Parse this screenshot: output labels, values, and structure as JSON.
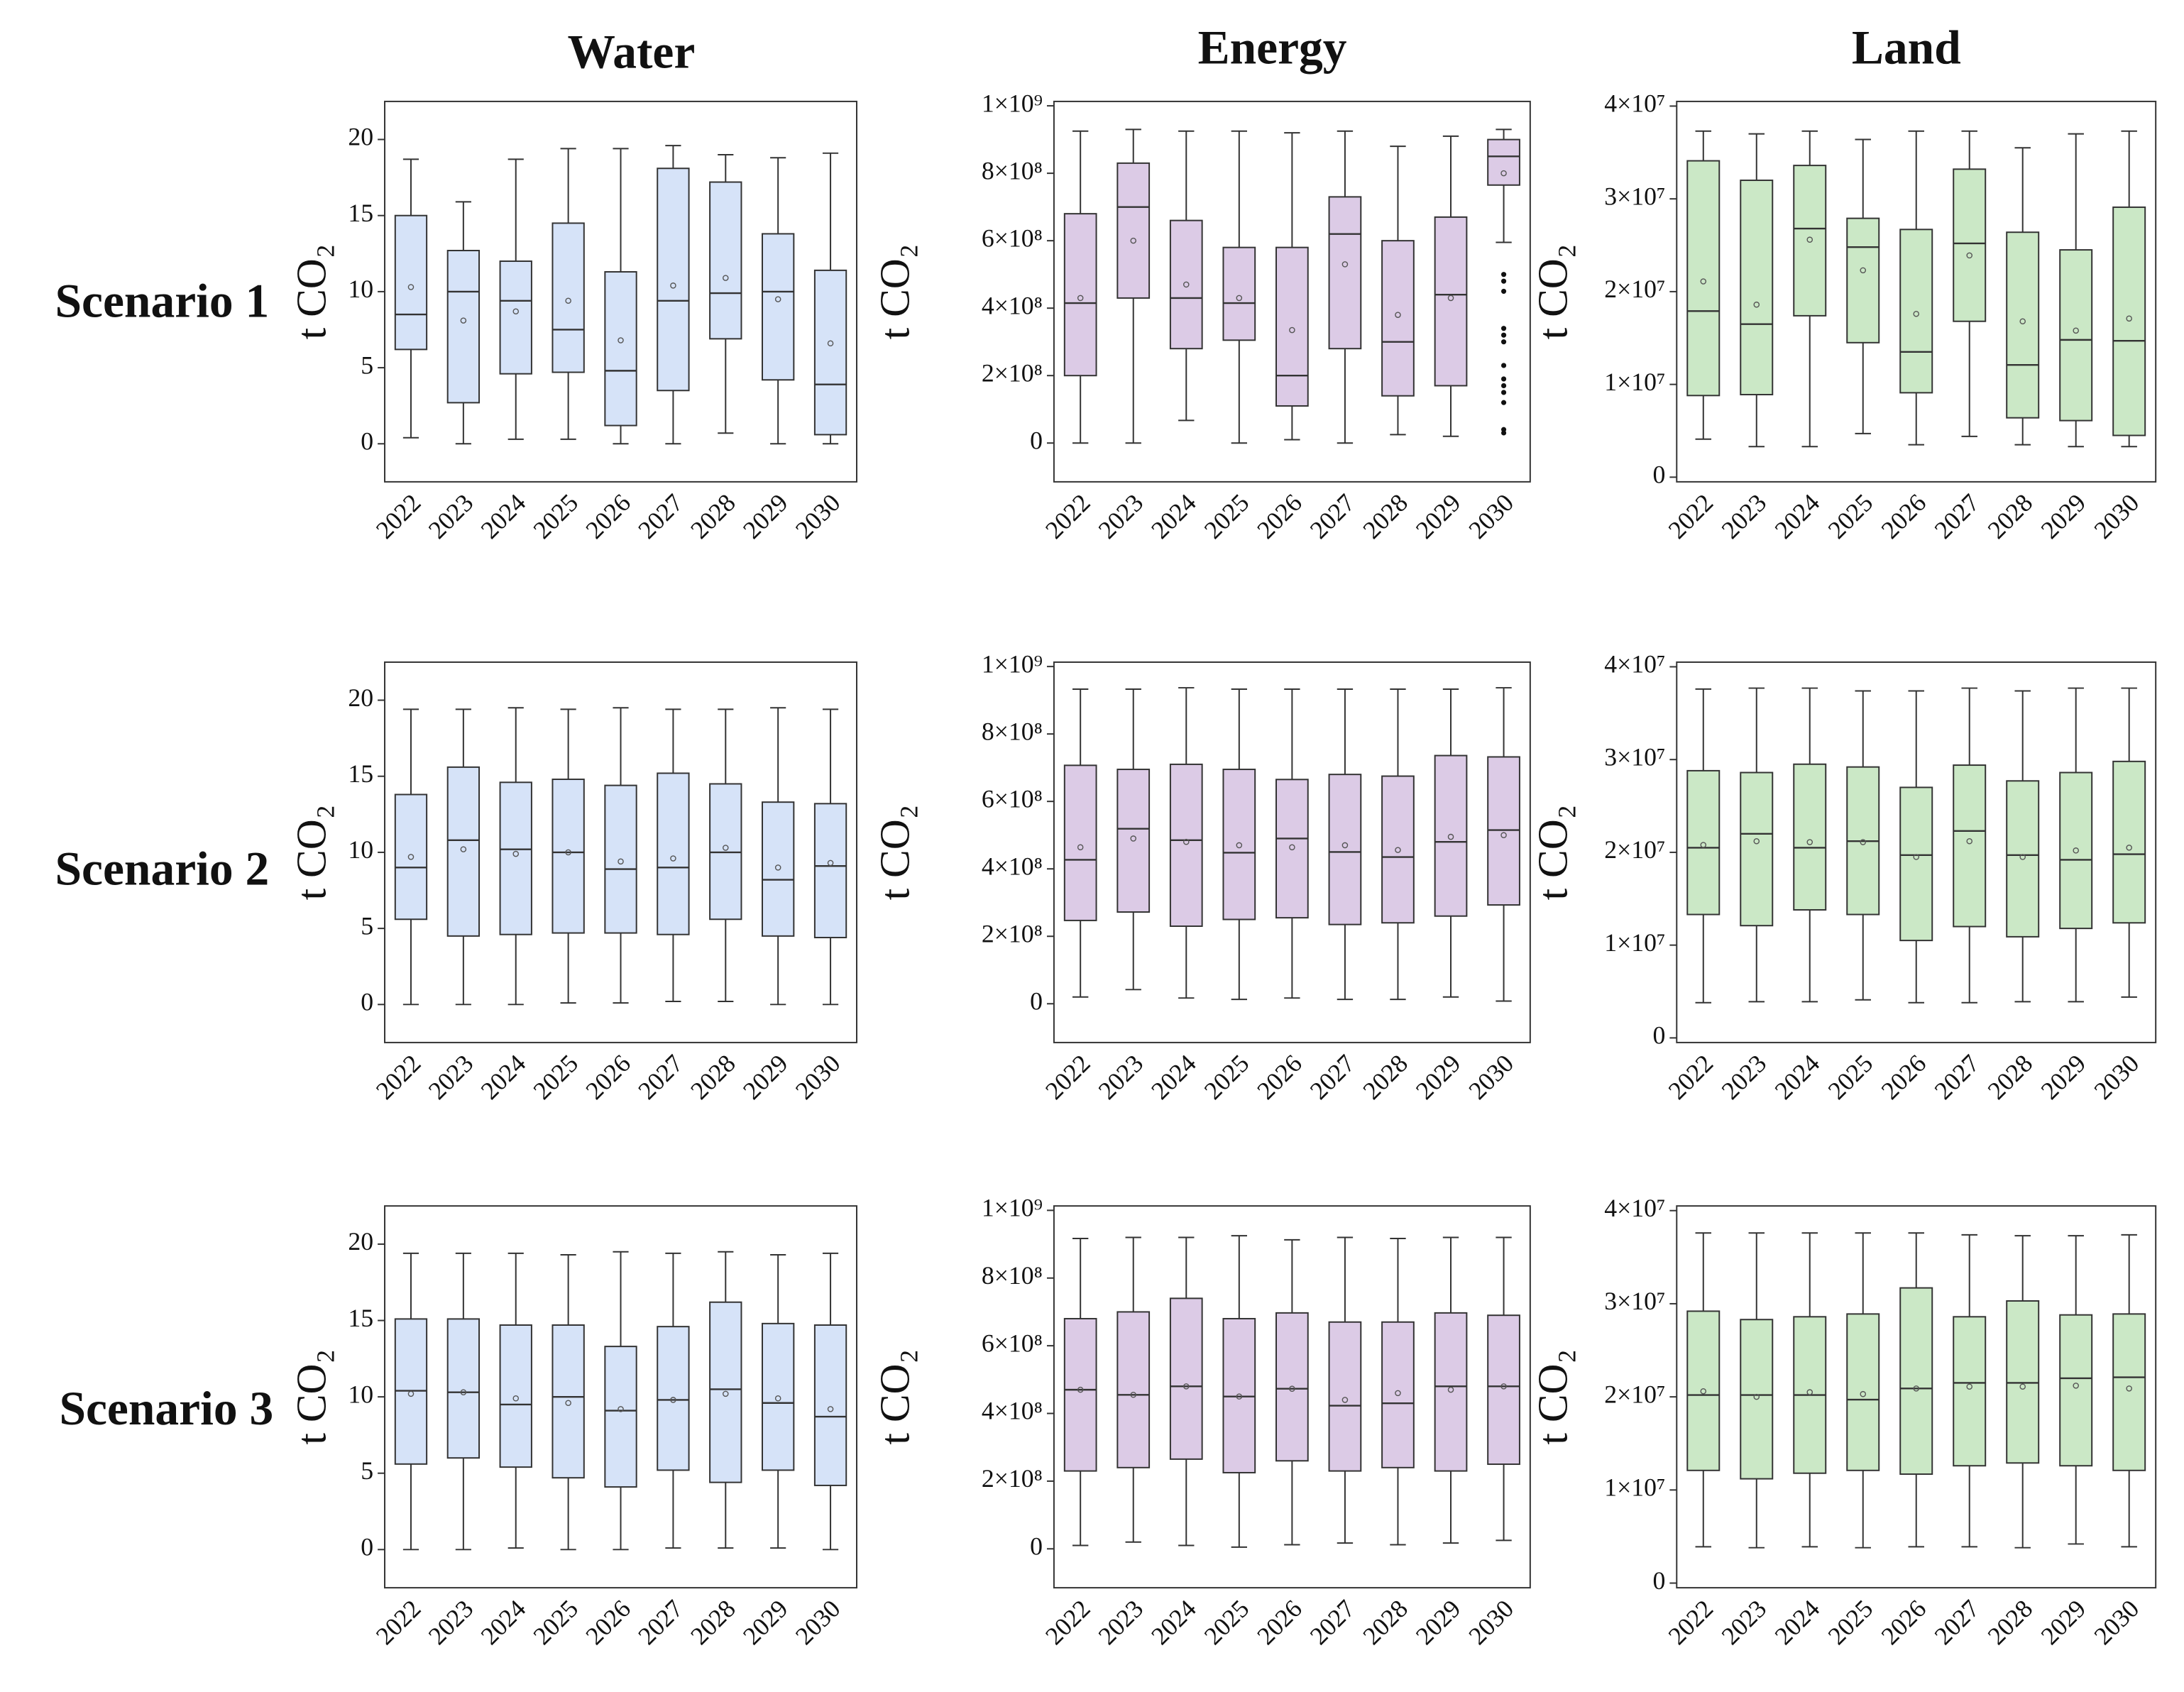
{
  "column_titles": [
    "Water",
    "Energy",
    "Land"
  ],
  "row_labels": [
    "Scenario 1",
    "Scenario 2",
    "Scenario 3"
  ],
  "chart_data": [
    {
      "type": "box",
      "ylabel": "t CO₂",
      "color": "#d6e3f8",
      "categories": [
        "2022",
        "2023",
        "2024",
        "2025",
        "2026",
        "2027",
        "2028",
        "2029",
        "2030"
      ],
      "min": [
        0.4,
        0,
        0.3,
        0.3,
        0,
        0,
        0.7,
        0,
        0
      ],
      "q1": [
        6.2,
        2.7,
        4.6,
        4.7,
        1.2,
        3.5,
        6.9,
        4.2,
        0.6
      ],
      "median": [
        8.5,
        10.0,
        9.4,
        7.5,
        4.8,
        9.4,
        9.9,
        10.0,
        3.9
      ],
      "q3": [
        15.0,
        12.7,
        12.0,
        14.5,
        11.3,
        18.1,
        17.2,
        13.8,
        11.4
      ],
      "max": [
        18.7,
        15.9,
        18.7,
        19.4,
        19.4,
        19.6,
        19.0,
        18.8,
        19.1
      ],
      "mean": [
        10.3,
        8.1,
        8.7,
        9.4,
        6.8,
        10.4,
        10.9,
        9.5,
        6.6
      ],
      "ylim": [
        -2.5,
        22.5
      ],
      "yticks": [
        0,
        5,
        10,
        15,
        20
      ]
    },
    {
      "type": "box",
      "ylabel": "t CO₂",
      "color": "#dccbe6",
      "categories": [
        "2022",
        "2023",
        "2024",
        "2025",
        "2026",
        "2027",
        "2028",
        "2029",
        "2030"
      ],
      "min": [
        0,
        0,
        67000000.0,
        0,
        10000000.0,
        0,
        25000000.0,
        20000000.0,
        595000000.0
      ],
      "q1": [
        200000000.0,
        430000000.0,
        280000000.0,
        305000000.0,
        110000000.0,
        280000000.0,
        140000000.0,
        170000000.0,
        765000000.0
      ],
      "median": [
        415000000.0,
        700000000.0,
        430000000.0,
        415000000.0,
        200000000.0,
        620000000.0,
        300000000.0,
        440000000.0,
        850000000.0
      ],
      "q3": [
        680000000.0,
        830000000.0,
        660000000.0,
        580000000.0,
        580000000.0,
        730000000.0,
        600000000.0,
        670000000.0,
        900000000.0
      ],
      "max": [
        925000000.0,
        930000000.0,
        925000000.0,
        925000000.0,
        920000000.0,
        925000000.0,
        880000000.0,
        910000000.0,
        930000000.0
      ],
      "mean": [
        430000000.0,
        600000000.0,
        470000000.0,
        430000000.0,
        335000000.0,
        530000000.0,
        380000000.0,
        430000000.0,
        800000000.0
      ],
      "outliers": [
        [],
        [],
        [],
        [],
        [],
        [],
        [],
        [],
        [
          500000000.0,
          480000000.0,
          450000000.0,
          340000000.0,
          320000000.0,
          300000000.0,
          230000000.0,
          190000000.0,
          170000000.0,
          150000000.0,
          120000000.0,
          40000000.0,
          30000000.0
        ]
      ],
      "ylim": [
        -115000000.0,
        1013000000.0
      ],
      "yticks": [
        0,
        {
          "value": 200000000.0,
          "label": "2×10⁸"
        },
        {
          "value": 400000000.0,
          "label": "4×10⁸"
        },
        {
          "value": 600000000.0,
          "label": "6×10⁸"
        },
        {
          "value": 800000000.0,
          "label": "8×10⁸"
        },
        {
          "value": 1000000000.0,
          "label": "1×10⁹"
        }
      ]
    },
    {
      "type": "box",
      "ylabel": "t CO₂",
      "color": "#cbe8c6",
      "categories": [
        "2022",
        "2023",
        "2024",
        "2025",
        "2026",
        "2027",
        "2028",
        "2029",
        "2030"
      ],
      "min": [
        4100000.0,
        3300000.0,
        3300000.0,
        4700000.0,
        3500000.0,
        4400000.0,
        3500000.0,
        3300000.0,
        3300000.0
      ],
      "q1": [
        8800000.0,
        8900000.0,
        17400000.0,
        14500000.0,
        9100000.0,
        16800000.0,
        6400000.0,
        6100000.0,
        4500000.0
      ],
      "median": [
        17900000.0,
        16500000.0,
        26800000.0,
        24800000.0,
        13500000.0,
        25200000.0,
        12100000.0,
        14800000.0,
        14700000.0
      ],
      "q3": [
        34100000.0,
        32000000.0,
        33600000.0,
        27900000.0,
        26700000.0,
        33200000.0,
        26400000.0,
        24500000.0,
        29100000.0
      ],
      "max": [
        37300000.0,
        37000000.0,
        37300000.0,
        36400000.0,
        37300000.0,
        37300000.0,
        35500000.0,
        37000000.0,
        37300000.0
      ],
      "mean": [
        21100000.0,
        18600000.0,
        25600000.0,
        22300000.0,
        17600000.0,
        23900000.0,
        16800000.0,
        15800000.0,
        17100000.0
      ],
      "ylim": [
        -500000.0,
        40500000.0
      ],
      "yticks": [
        0,
        {
          "value": 10000000.0,
          "label": "1×10⁷"
        },
        {
          "value": 20000000.0,
          "label": "2×10⁷"
        },
        {
          "value": 30000000.0,
          "label": "3×10⁷"
        },
        {
          "value": 40000000.0,
          "label": "4×10⁷"
        }
      ]
    },
    {
      "type": "box",
      "ylabel": "t CO₂",
      "color": "#d6e3f8",
      "categories": [
        "2022",
        "2023",
        "2024",
        "2025",
        "2026",
        "2027",
        "2028",
        "2029",
        "2030"
      ],
      "min": [
        0,
        0,
        0,
        0.1,
        0.1,
        0.2,
        0.2,
        0,
        0
      ],
      "q1": [
        5.6,
        4.5,
        4.6,
        4.7,
        4.7,
        4.6,
        5.6,
        4.5,
        4.4
      ],
      "median": [
        9.0,
        10.8,
        10.2,
        10.0,
        8.9,
        9.0,
        10.0,
        8.2,
        9.1
      ],
      "q3": [
        13.8,
        15.6,
        14.6,
        14.8,
        14.4,
        15.2,
        14.5,
        13.3,
        13.2
      ],
      "max": [
        19.4,
        19.4,
        19.5,
        19.4,
        19.5,
        19.4,
        19.4,
        19.5,
        19.4
      ],
      "mean": [
        9.7,
        10.2,
        9.9,
        10.0,
        9.4,
        9.6,
        10.3,
        9.0,
        9.3
      ],
      "ylim": [
        -2.5,
        22.5
      ],
      "yticks": [
        0,
        5,
        10,
        15,
        20
      ]
    },
    {
      "type": "box",
      "ylabel": "t CO₂",
      "color": "#dccbe6",
      "categories": [
        "2022",
        "2023",
        "2024",
        "2025",
        "2026",
        "2027",
        "2028",
        "2029",
        "2030"
      ],
      "min": [
        20000000.0,
        42000000.0,
        17000000.0,
        13000000.0,
        17000000.0,
        13000000.0,
        13000000.0,
        20000000.0,
        8000000.0
      ],
      "q1": [
        247000000.0,
        272000000.0,
        230000000.0,
        250000000.0,
        255000000.0,
        235000000.0,
        240000000.0,
        260000000.0,
        293000000.0
      ],
      "median": [
        427000000.0,
        519000000.0,
        485000000.0,
        448000000.0,
        490000000.0,
        450000000.0,
        435000000.0,
        480000000.0,
        515000000.0
      ],
      "q3": [
        707000000.0,
        695000000.0,
        710000000.0,
        695000000.0,
        665000000.0,
        680000000.0,
        675000000.0,
        736000000.0,
        732000000.0
      ],
      "max": [
        933000000.0,
        933000000.0,
        937000000.0,
        933000000.0,
        933000000.0,
        933000000.0,
        933000000.0,
        933000000.0,
        937000000.0
      ],
      "mean": [
        464000000.0,
        490000000.0,
        480000000.0,
        470000000.0,
        464000000.0,
        470000000.0,
        456000000.0,
        495000000.0,
        500000000.0
      ],
      "ylim": [
        -115000000.0,
        1013000000.0
      ],
      "yticks": [
        0,
        {
          "value": 200000000.0,
          "label": "2×10⁸"
        },
        {
          "value": 400000000.0,
          "label": "4×10⁸"
        },
        {
          "value": 600000000.0,
          "label": "6×10⁸"
        },
        {
          "value": 800000000.0,
          "label": "8×10⁸"
        },
        {
          "value": 1000000000.0,
          "label": "1×10⁹"
        }
      ]
    },
    {
      "type": "box",
      "ylabel": "t CO₂",
      "color": "#cbe8c6",
      "categories": [
        "2022",
        "2023",
        "2024",
        "2025",
        "2026",
        "2027",
        "2028",
        "2029",
        "2030"
      ],
      "min": [
        3800000.0,
        3900000.0,
        3900000.0,
        4100000.0,
        3800000.0,
        3800000.0,
        3900000.0,
        3900000.0,
        4400000.0
      ],
      "q1": [
        13300000.0,
        12100000.0,
        13800000.0,
        13300000.0,
        10500000.0,
        12000000.0,
        10900000.0,
        11800000.0,
        12400000.0
      ],
      "median": [
        20500000.0,
        22000000.0,
        20500000.0,
        21200000.0,
        19700000.0,
        22300000.0,
        19700000.0,
        19200000.0,
        19800000.0
      ],
      "q3": [
        28800000.0,
        28600000.0,
        29500000.0,
        29200000.0,
        27000000.0,
        29400000.0,
        27700000.0,
        28600000.0,
        29800000.0
      ],
      "max": [
        37600000.0,
        37700000.0,
        37700000.0,
        37400000.0,
        37400000.0,
        37700000.0,
        37400000.0,
        37700000.0,
        37700000.0
      ],
      "mean": [
        20800000.0,
        21200000.0,
        21100000.0,
        21100000.0,
        19500000.0,
        21200000.0,
        19500000.0,
        20200000.0,
        20500000.0
      ],
      "ylim": [
        -500000.0,
        40500000.0
      ],
      "yticks": [
        0,
        {
          "value": 10000000.0,
          "label": "1×10⁷"
        },
        {
          "value": 20000000.0,
          "label": "2×10⁷"
        },
        {
          "value": 30000000.0,
          "label": "3×10⁷"
        },
        {
          "value": 40000000.0,
          "label": "4×10⁷"
        }
      ]
    },
    {
      "type": "box",
      "ylabel": "t CO₂",
      "color": "#d6e3f8",
      "categories": [
        "2022",
        "2023",
        "2024",
        "2025",
        "2026",
        "2027",
        "2028",
        "2029",
        "2030"
      ],
      "min": [
        0,
        0,
        0.1,
        0,
        0,
        0.1,
        0.1,
        0.1,
        0
      ],
      "q1": [
        5.6,
        6.0,
        5.4,
        4.7,
        4.1,
        5.2,
        4.4,
        5.2,
        4.2
      ],
      "median": [
        10.4,
        10.3,
        9.5,
        10.0,
        9.1,
        9.8,
        10.5,
        9.6,
        8.7
      ],
      "q3": [
        15.1,
        15.1,
        14.7,
        14.7,
        13.3,
        14.6,
        16.2,
        14.8,
        14.7
      ],
      "max": [
        19.4,
        19.4,
        19.4,
        19.3,
        19.5,
        19.4,
        19.5,
        19.3,
        19.4
      ],
      "mean": [
        10.2,
        10.3,
        9.9,
        9.6,
        9.2,
        9.8,
        10.2,
        9.9,
        9.2
      ],
      "ylim": [
        -2.5,
        22.5
      ],
      "yticks": [
        0,
        5,
        10,
        15,
        20
      ]
    },
    {
      "type": "box",
      "ylabel": "t CO₂",
      "color": "#dccbe6",
      "categories": [
        "2022",
        "2023",
        "2024",
        "2025",
        "2026",
        "2027",
        "2028",
        "2029",
        "2030"
      ],
      "min": [
        10000000.0,
        20000000.0,
        10000000.0,
        5000000.0,
        12000000.0,
        17000000.0,
        12000000.0,
        17000000.0,
        25000000.0
      ],
      "q1": [
        230000000.0,
        240000000.0,
        265000000.0,
        225000000.0,
        260000000.0,
        230000000.0,
        240000000.0,
        230000000.0,
        250000000.0
      ],
      "median": [
        470000000.0,
        455000000.0,
        480000000.0,
        450000000.0,
        473000000.0,
        423000000.0,
        430000000.0,
        480000000.0,
        480000000.0
      ],
      "q3": [
        680000000.0,
        700000000.0,
        740000000.0,
        680000000.0,
        697000000.0,
        670000000.0,
        670000000.0,
        697000000.0,
        690000000.0
      ],
      "max": [
        917000000.0,
        920000000.0,
        920000000.0,
        925000000.0,
        913000000.0,
        920000000.0,
        917000000.0,
        920000000.0,
        920000000.0
      ],
      "mean": [
        470000000.0,
        455000000.0,
        480000000.0,
        450000000.0,
        473000000.0,
        440000000.0,
        460000000.0,
        470000000.0,
        480000000.0
      ],
      "ylim": [
        -115000000.0,
        1013000000.0
      ],
      "yticks": [
        0,
        {
          "value": 200000000.0,
          "label": "2×10⁸"
        },
        {
          "value": 400000000.0,
          "label": "4×10⁸"
        },
        {
          "value": 600000000.0,
          "label": "6×10⁸"
        },
        {
          "value": 800000000.0,
          "label": "8×10⁸"
        },
        {
          "value": 1000000000.0,
          "label": "1×10⁹"
        }
      ]
    },
    {
      "type": "box",
      "ylabel": "t CO₂",
      "color": "#cbe8c6",
      "categories": [
        "2022",
        "2023",
        "2024",
        "2025",
        "2026",
        "2027",
        "2028",
        "2029",
        "2030"
      ],
      "min": [
        3900000.0,
        3800000.0,
        3900000.0,
        3800000.0,
        3900000.0,
        3900000.0,
        3800000.0,
        4200000.0,
        3900000.0
      ],
      "q1": [
        12100000.0,
        11200000.0,
        11800000.0,
        12100000.0,
        11700000.0,
        12600000.0,
        12900000.0,
        12600000.0,
        12100000.0
      ],
      "median": [
        20200000.0,
        20200000.0,
        20200000.0,
        19700000.0,
        20900000.0,
        21500000.0,
        21500000.0,
        22000000.0,
        22100000.0
      ],
      "q3": [
        29200000.0,
        28300000.0,
        28600000.0,
        28900000.0,
        31700000.0,
        28600000.0,
        30300000.0,
        28800000.0,
        28900000.0
      ],
      "max": [
        37600000.0,
        37600000.0,
        37600000.0,
        37600000.0,
        37600000.0,
        37400000.0,
        37300000.0,
        37300000.0,
        37400000.0
      ],
      "mean": [
        20600000.0,
        20000000.0,
        20500000.0,
        20300000.0,
        20900000.0,
        21100000.0,
        21100000.0,
        21200000.0,
        20900000.0
      ],
      "ylim": [
        -500000.0,
        40500000.0
      ],
      "yticks": [
        0,
        {
          "value": 10000000.0,
          "label": "1×10⁷"
        },
        {
          "value": 20000000.0,
          "label": "2×10⁷"
        },
        {
          "value": 30000000.0,
          "label": "3×10⁷"
        },
        {
          "value": 40000000.0,
          "label": "4×10⁷"
        }
      ]
    }
  ]
}
